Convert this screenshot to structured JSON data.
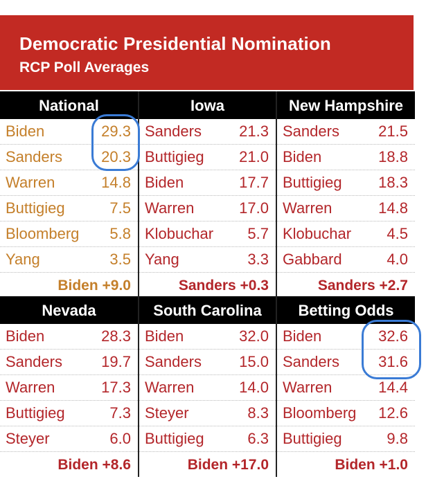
{
  "header": {
    "title": "Democratic Presidential Nomination",
    "subtitle": "RCP Poll Averages"
  },
  "panels_top": [
    {
      "name": "National",
      "rows": [
        {
          "name": "Biden",
          "value": "29.3"
        },
        {
          "name": "Sanders",
          "value": "20.3"
        },
        {
          "name": "Warren",
          "value": "14.8"
        },
        {
          "name": "Buttigieg",
          "value": "7.5"
        },
        {
          "name": "Bloomberg",
          "value": "5.8"
        },
        {
          "name": "Yang",
          "value": "3.5"
        }
      ],
      "spread": "Biden +9.0"
    },
    {
      "name": "Iowa",
      "rows": [
        {
          "name": "Sanders",
          "value": "21.3"
        },
        {
          "name": "Buttigieg",
          "value": "21.0"
        },
        {
          "name": "Biden",
          "value": "17.7"
        },
        {
          "name": "Warren",
          "value": "17.0"
        },
        {
          "name": "Klobuchar",
          "value": "5.7"
        },
        {
          "name": "Yang",
          "value": "3.3"
        }
      ],
      "spread": "Sanders +0.3"
    },
    {
      "name": "New Hampshire",
      "rows": [
        {
          "name": "Sanders",
          "value": "21.5"
        },
        {
          "name": "Biden",
          "value": "18.8"
        },
        {
          "name": "Buttigieg",
          "value": "18.3"
        },
        {
          "name": "Warren",
          "value": "14.8"
        },
        {
          "name": "Klobuchar",
          "value": "4.5"
        },
        {
          "name": "Gabbard",
          "value": "4.0"
        }
      ],
      "spread": "Sanders +2.7"
    }
  ],
  "panels_bottom": [
    {
      "name": "Nevada",
      "rows": [
        {
          "name": "Biden",
          "value": "28.3"
        },
        {
          "name": "Sanders",
          "value": "19.7"
        },
        {
          "name": "Warren",
          "value": "17.3"
        },
        {
          "name": "Buttigieg",
          "value": "7.3"
        },
        {
          "name": "Steyer",
          "value": "6.0"
        }
      ],
      "spread": "Biden +8.6"
    },
    {
      "name": "South Carolina",
      "rows": [
        {
          "name": "Biden",
          "value": "32.0"
        },
        {
          "name": "Sanders",
          "value": "15.0"
        },
        {
          "name": "Warren",
          "value": "14.0"
        },
        {
          "name": "Steyer",
          "value": "8.3"
        },
        {
          "name": "Buttigieg",
          "value": "6.3"
        }
      ],
      "spread": "Biden +17.0"
    },
    {
      "name": "Betting Odds",
      "rows": [
        {
          "name": "Biden",
          "value": "32.6"
        },
        {
          "name": "Sanders",
          "value": "31.6"
        },
        {
          "name": "Warren",
          "value": "14.4"
        },
        {
          "name": "Bloomberg",
          "value": "12.6"
        },
        {
          "name": "Buttigieg",
          "value": "9.8"
        }
      ],
      "spread": "Biden +1.0"
    }
  ],
  "colors": {
    "header_red": "#c22a23",
    "text_red": "#b3262a",
    "national_gold": "#c47f2a",
    "annotation_blue": "#3a7bd5"
  }
}
